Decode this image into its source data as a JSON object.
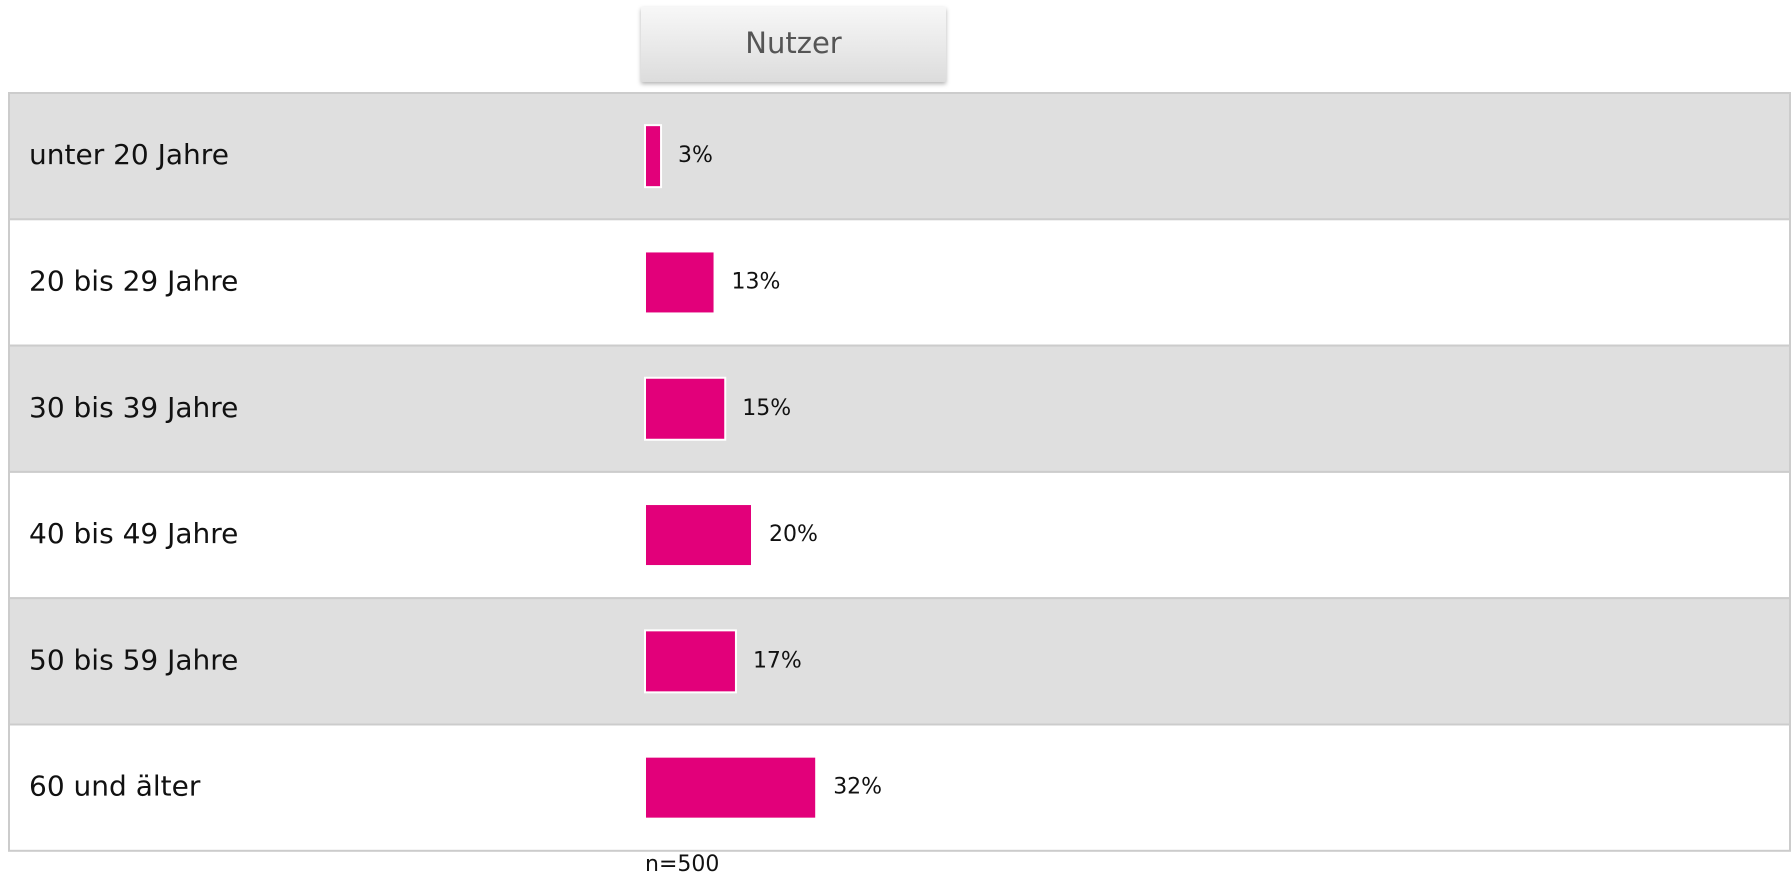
{
  "chart_data": {
    "type": "bar",
    "orientation": "horizontal",
    "categories": [
      "unter 20 Jahre",
      "20 bis 29 Jahre",
      "30 bis 39 Jahre",
      "40 bis 49 Jahre",
      "50 bis 59 Jahre",
      "60 und älter"
    ],
    "series": [
      {
        "name": "Nutzer",
        "color": "#e2007a",
        "values": [
          3,
          13,
          15,
          20,
          17,
          32
        ],
        "value_labels": [
          "3%",
          "13%",
          "15%",
          "20%",
          "17%",
          "32%"
        ]
      }
    ],
    "note": "n=500"
  }
}
